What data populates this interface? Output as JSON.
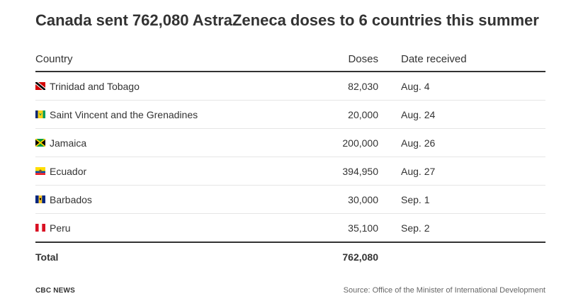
{
  "chart_data": {
    "type": "table",
    "title": "Canada sent 762,080 AstraZeneca doses to 6 countries this summer",
    "columns": [
      "Country",
      "Doses",
      "Date received"
    ],
    "rows": [
      {
        "flag": "flag-trinidad-and-tobago",
        "country": "Trinidad and Tobago",
        "doses": "82,030",
        "date": "Aug. 4"
      },
      {
        "flag": "flag-saint-vincent",
        "country": "Saint Vincent and the Grenadines",
        "doses": "20,000",
        "date": "Aug. 24"
      },
      {
        "flag": "flag-jamaica",
        "country": "Jamaica",
        "doses": "200,000",
        "date": "Aug. 26"
      },
      {
        "flag": "flag-ecuador",
        "country": "Ecuador",
        "doses": "394,950",
        "date": "Aug. 27"
      },
      {
        "flag": "flag-barbados",
        "country": "Barbados",
        "doses": "30,000",
        "date": "Sep. 1"
      },
      {
        "flag": "flag-peru",
        "country": "Peru",
        "doses": "35,100",
        "date": "Sep. 2"
      }
    ],
    "total": {
      "label": "Total",
      "doses": "762,080"
    }
  },
  "footer": {
    "brand": "CBC NEWS",
    "source": "Source: Office of the Minister of International Development"
  },
  "colors": {
    "text": "#333333",
    "rule": "#333333",
    "row_divider": "#e6e6e6",
    "source_text": "#666666"
  }
}
